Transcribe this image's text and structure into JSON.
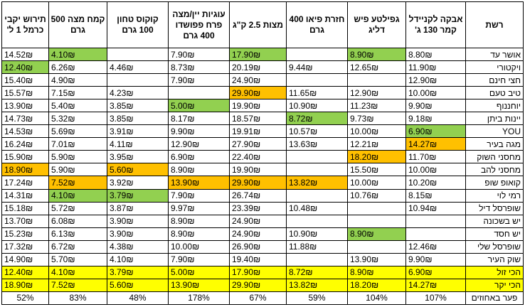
{
  "headers": [
    "רשת",
    "אבקה לקניידל קמר 130 ג'",
    "גפילטע פיש דליג",
    "חזרת פיאו 400 גרם",
    "מצות 2.5 ק\"ג",
    "עוגיות יין/מצה פרח פפושדו 400 גרם",
    "קוקוס טחון 100 גרם",
    "קמח מצה 500 גרם",
    "תירוש יקבי כרמל 1 ל'"
  ],
  "colors": {
    "cheapest": "#92d050",
    "most_expensive": "#ffc000",
    "summary": "#ffff00"
  },
  "rows": [
    {
      "chain": "אושר עד",
      "cells": [
        {
          "v": "8.80₪"
        },
        {
          "v": "8.90₪",
          "h": "g"
        },
        {
          "v": ""
        },
        {
          "v": "17.90₪",
          "h": "g"
        },
        {
          "v": "7.90₪"
        },
        {
          "v": ""
        },
        {
          "v": "4.10₪",
          "h": "g"
        },
        {
          "v": "14.52₪"
        }
      ]
    },
    {
      "chain": "ויקטורי",
      "cells": [
        {
          "v": "11.90₪"
        },
        {
          "v": "12.65₪"
        },
        {
          "v": "9.44₪"
        },
        {
          "v": "20.19₪"
        },
        {
          "v": "8.73₪"
        },
        {
          "v": "4.46₪"
        },
        {
          "v": "6.26₪"
        },
        {
          "v": "12.40₪",
          "h": "g"
        }
      ]
    },
    {
      "chain": "חצי חינם",
      "cells": [
        {
          "v": "12.90₪"
        },
        {
          "v": ""
        },
        {
          "v": ""
        },
        {
          "v": "24.90₪"
        },
        {
          "v": "7.90₪"
        },
        {
          "v": ""
        },
        {
          "v": "4.90₪"
        },
        {
          "v": "15.40₪"
        }
      ]
    },
    {
      "chain": "טיב טעם",
      "cells": [
        {
          "v": "10.00₪"
        },
        {
          "v": "12.90₪"
        },
        {
          "v": "11.65₪"
        },
        {
          "v": "29.90₪",
          "h": "o"
        },
        {
          "v": ""
        },
        {
          "v": "4.23₪"
        },
        {
          "v": "7.15₪"
        },
        {
          "v": "15.57₪"
        }
      ]
    },
    {
      "chain": "יוחננוף",
      "cells": [
        {
          "v": "9.90₪"
        },
        {
          "v": "11.23₪"
        },
        {
          "v": "10.90₪"
        },
        {
          "v": "19.90₪"
        },
        {
          "v": "5.00₪",
          "h": "g"
        },
        {
          "v": "3.85₪"
        },
        {
          "v": "5.40₪"
        },
        {
          "v": "13.90₪"
        }
      ]
    },
    {
      "chain": "יינות ביתן",
      "cells": [
        {
          "v": "9.18₪"
        },
        {
          "v": "9.73₪"
        },
        {
          "v": "8.72₪",
          "h": "g"
        },
        {
          "v": "18.57₪"
        },
        {
          "v": "8.17₪"
        },
        {
          "v": "3.85₪"
        },
        {
          "v": "5.32₪"
        },
        {
          "v": "14.73₪"
        }
      ]
    },
    {
      "chain": "YOU",
      "cells": [
        {
          "v": "6.90₪",
          "h": "g"
        },
        {
          "v": "10.00₪"
        },
        {
          "v": "10.57₪"
        },
        {
          "v": "19.91₪"
        },
        {
          "v": "9.90₪"
        },
        {
          "v": "3.91₪"
        },
        {
          "v": "5.69₪"
        },
        {
          "v": "14.53₪"
        }
      ]
    },
    {
      "chain": "מגה בעיר",
      "cells": [
        {
          "v": "14.27₪",
          "h": "o"
        },
        {
          "v": "12.21₪"
        },
        {
          "v": "13.63₪"
        },
        {
          "v": "27.90₪"
        },
        {
          "v": "12.90₪"
        },
        {
          "v": "4.11₪"
        },
        {
          "v": "7.01₪"
        },
        {
          "v": "16.24₪"
        }
      ]
    },
    {
      "chain": "מחסני השוק",
      "cells": [
        {
          "v": "11.70₪"
        },
        {
          "v": "18.20₪",
          "h": "o"
        },
        {
          "v": ""
        },
        {
          "v": "22.40₪"
        },
        {
          "v": "6.90₪"
        },
        {
          "v": "3.95₪"
        },
        {
          "v": "5.90₪"
        },
        {
          "v": "15.90₪"
        }
      ]
    },
    {
      "chain": "מחסני להב",
      "cells": [
        {
          "v": "10.00₪"
        },
        {
          "v": "15.50₪"
        },
        {
          "v": ""
        },
        {
          "v": "19.90₪"
        },
        {
          "v": "8.90₪"
        },
        {
          "v": "5.60₪",
          "h": "o"
        },
        {
          "v": "5.90₪"
        },
        {
          "v": "18.90₪",
          "h": "o"
        }
      ]
    },
    {
      "chain": "קואופ שופ",
      "cells": [
        {
          "v": "10.20₪"
        },
        {
          "v": "10.00₪"
        },
        {
          "v": "13.82₪",
          "h": "o"
        },
        {
          "v": "29.90₪",
          "h": "o"
        },
        {
          "v": "13.90₪",
          "h": "o"
        },
        {
          "v": "3.92₪"
        },
        {
          "v": "7.52₪",
          "h": "o"
        },
        {
          "v": "17.24₪"
        }
      ]
    },
    {
      "chain": "רמי לוי",
      "cells": [
        {
          "v": "8.15₪"
        },
        {
          "v": "10.76₪"
        },
        {
          "v": ""
        },
        {
          "v": "26.74₪"
        },
        {
          "v": "7.90₪"
        },
        {
          "v": "3.79₪",
          "h": "g"
        },
        {
          "v": "4.10₪",
          "h": "g"
        },
        {
          "v": "14.31₪"
        }
      ]
    },
    {
      "chain": "שופרסל דיל",
      "cells": [
        {
          "v": "10.94₪"
        },
        {
          "v": ""
        },
        {
          "v": "10.48₪"
        },
        {
          "v": "23.39₪"
        },
        {
          "v": "9.97₪"
        },
        {
          "v": "3.87₪"
        },
        {
          "v": "5.72₪"
        },
        {
          "v": "15.18₪"
        }
      ]
    },
    {
      "chain": "יש בשכונה",
      "cells": [
        {
          "v": ""
        },
        {
          "v": ""
        },
        {
          "v": ""
        },
        {
          "v": "24.90₪"
        },
        {
          "v": "8.90₪"
        },
        {
          "v": "3.90₪"
        },
        {
          "v": "6.08₪"
        },
        {
          "v": "13.70₪"
        }
      ]
    },
    {
      "chain": "יש חסד",
      "cells": [
        {
          "v": ""
        },
        {
          "v": "8.90₪",
          "h": "g"
        },
        {
          "v": "10.90₪"
        },
        {
          "v": "24.90₪"
        },
        {
          "v": "8.90₪"
        },
        {
          "v": "3.90₪"
        },
        {
          "v": "6.13₪"
        },
        {
          "v": "15.23₪"
        }
      ]
    },
    {
      "chain": "שופרסל שלי",
      "cells": [
        {
          "v": "12.46₪"
        },
        {
          "v": ""
        },
        {
          "v": "11.88₪"
        },
        {
          "v": "26.90₪"
        },
        {
          "v": "10.00₪"
        },
        {
          "v": "4.38₪"
        },
        {
          "v": "6.72₪"
        },
        {
          "v": "17.32₪"
        }
      ]
    },
    {
      "chain": "שוק העיר",
      "cells": [
        {
          "v": "9.90₪"
        },
        {
          "v": "13.90₪"
        },
        {
          "v": ""
        },
        {
          "v": "19.40₪"
        },
        {
          "v": "7.90₪"
        },
        {
          "v": "4.10₪"
        },
        {
          "v": "5.70₪"
        },
        {
          "v": "14.90₪"
        }
      ]
    }
  ],
  "summary": [
    {
      "label": "הכי זול",
      "cells": [
        "6.90₪",
        "8.90₪",
        "8.72₪",
        "17.90₪",
        "5.00₪",
        "3.79₪",
        "4.10₪",
        "12.40₪"
      ]
    },
    {
      "label": "הכי יקר",
      "cells": [
        "14.27₪",
        "18.20₪",
        "13.82₪",
        "29.90₪",
        "13.90₪",
        "5.60₪",
        "7.52₪",
        "18.90₪"
      ]
    }
  ],
  "gap": {
    "label": "פער באחוזים",
    "cells": [
      "107%",
      "104%",
      "59%",
      "67%",
      "178%",
      "48%",
      "83%",
      "52%"
    ]
  }
}
